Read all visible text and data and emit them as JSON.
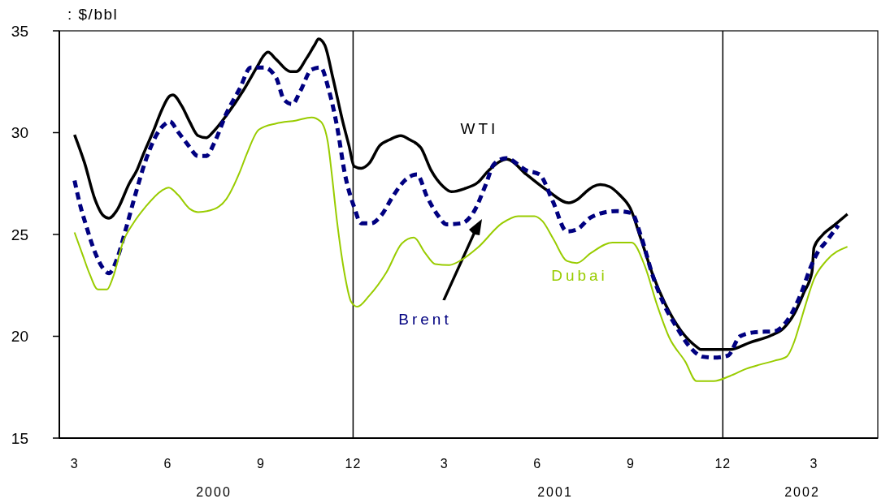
{
  "chart_data": {
    "type": "line",
    "ylabel": ": $/bbl",
    "xlim": [
      "2000-02-15",
      "2002-05-03"
    ],
    "ylim": [
      15,
      35
    ],
    "yticks": [
      15,
      20,
      25,
      30,
      35
    ],
    "xticks": [
      {
        "value": "2000-03",
        "label": "3"
      },
      {
        "value": "2000-06",
        "label": "6"
      },
      {
        "value": "2000-09",
        "label": "9"
      },
      {
        "value": "2000-12",
        "label": "12"
      },
      {
        "value": "2001-03",
        "label": "3"
      },
      {
        "value": "2001-06",
        "label": "6"
      },
      {
        "value": "2001-09",
        "label": "9"
      },
      {
        "value": "2001-12",
        "label": "12"
      },
      {
        "value": "2002-03",
        "label": "3"
      }
    ],
    "grid": false,
    "legend": false,
    "marker": "none",
    "annotations": [
      "2000",
      "2001",
      "2002"
    ],
    "ref_lines": [
      {
        "axis": "x",
        "value": "2000-12",
        "color": "#000000"
      },
      {
        "axis": "x",
        "value": "2001-12",
        "color": "#000000"
      }
    ],
    "series": [
      {
        "name": "WTI",
        "color": "#000000",
        "line_style": "solid",
        "x": [
          "2000-03-01",
          "2000-03-11",
          "2000-03-21",
          "2000-03-29",
          "2000-04-04",
          "2000-04-12",
          "2000-04-24",
          "2000-05-02",
          "2000-05-08",
          "2000-05-18",
          "2000-05-26",
          "2000-06-03",
          "2000-06-06",
          "2000-06-15",
          "2000-06-23",
          "2000-07-01",
          "2000-07-09",
          "2000-07-17",
          "2000-07-29",
          "2000-08-15",
          "2000-08-29",
          "2000-09-04",
          "2000-09-08",
          "2000-09-16",
          "2000-09-30",
          "2000-10-06",
          "2000-10-16",
          "2000-10-24",
          "2000-10-28",
          "2000-11-03",
          "2000-11-11",
          "2000-11-21",
          "2000-11-27",
          "2000-12-02",
          "2000-12-09",
          "2000-12-17",
          "2000-12-27",
          "2001-01-06",
          "2001-01-17",
          "2001-01-26",
          "2001-02-06",
          "2001-02-16",
          "2001-02-28",
          "2001-03-08",
          "2001-03-21",
          "2001-04-03",
          "2001-04-14",
          "2001-05-02",
          "2001-05-21",
          "2001-06-11",
          "2001-07-02",
          "2001-07-10",
          "2001-07-18",
          "2001-07-26",
          "2001-08-02",
          "2001-08-11",
          "2001-08-21",
          "2001-09-01",
          "2001-09-11",
          "2001-09-23",
          "2001-10-05",
          "2001-10-21",
          "2001-11-06",
          "2001-11-09",
          "2001-11-21",
          "2001-12-08",
          "2001-12-28",
          "2002-01-18",
          "2002-01-30",
          "2002-02-10",
          "2002-02-19",
          "2002-02-27",
          "2002-03-01",
          "2002-03-09",
          "2002-03-21",
          "2002-04-03"
        ],
        "values": [
          29.9,
          28.5,
          26.75,
          25.95,
          25.8,
          26.2,
          27.5,
          28.2,
          28.95,
          30.1,
          31.1,
          31.8,
          31.85,
          31.3,
          30.5,
          29.85,
          29.75,
          30.1,
          30.85,
          32.1,
          33.3,
          33.8,
          33.95,
          33.6,
          33.0,
          33.0,
          33.65,
          34.3,
          34.6,
          34.3,
          32.7,
          30.5,
          29.35,
          28.35,
          28.25,
          28.5,
          29.35,
          29.65,
          29.85,
          29.65,
          29.25,
          28.15,
          27.35,
          27.1,
          27.25,
          27.55,
          28.15,
          28.7,
          27.95,
          27.15,
          26.55,
          26.7,
          27.05,
          27.35,
          27.45,
          27.35,
          26.95,
          26.25,
          24.8,
          23.0,
          21.6,
          20.25,
          19.45,
          19.35,
          19.35,
          19.35,
          19.7,
          20.05,
          20.4,
          21.15,
          22.15,
          23.15,
          24.35,
          24.95,
          25.45,
          26.0
        ]
      },
      {
        "name": "Brent",
        "color": "#000080",
        "line_style": "dashed",
        "x": [
          "2000-03-01",
          "2000-03-06",
          "2000-03-13",
          "2000-03-21",
          "2000-03-29",
          "2000-04-04",
          "2000-04-12",
          "2000-04-20",
          "2000-04-30",
          "2000-05-10",
          "2000-05-21",
          "2000-05-30",
          "2000-06-03",
          "2000-06-11",
          "2000-06-21",
          "2000-07-01",
          "2000-07-09",
          "2000-07-17",
          "2000-07-29",
          "2000-08-11",
          "2000-08-22",
          "2000-09-04",
          "2000-09-16",
          "2000-09-24",
          "2000-10-02",
          "2000-10-10",
          "2000-10-21",
          "2000-10-30",
          "2000-11-07",
          "2000-11-15",
          "2000-11-23",
          "2000-12-02",
          "2000-12-09",
          "2000-12-19",
          "2000-12-29",
          "2001-01-09",
          "2001-01-21",
          "2001-02-02",
          "2001-02-12",
          "2001-02-24",
          "2001-03-03",
          "2001-03-18",
          "2001-03-30",
          "2001-04-11",
          "2001-04-19",
          "2001-05-01",
          "2001-05-21",
          "2001-06-03",
          "2001-06-16",
          "2001-06-30",
          "2001-07-10",
          "2001-07-24",
          "2001-08-18",
          "2001-09-02",
          "2001-09-11",
          "2001-09-23",
          "2001-10-05",
          "2001-10-17",
          "2001-10-29",
          "2001-11-11",
          "2001-11-22",
          "2001-12-06",
          "2001-12-18",
          "2002-01-02",
          "2002-01-21",
          "2002-02-03",
          "2002-02-15",
          "2002-02-27",
          "2002-03-05",
          "2002-03-13",
          "2002-03-25"
        ],
        "values": [
          27.65,
          26.55,
          25.35,
          24.15,
          23.35,
          23.1,
          23.8,
          25.15,
          26.95,
          28.6,
          29.9,
          30.45,
          30.55,
          30.05,
          29.4,
          28.85,
          28.85,
          29.5,
          30.95,
          32.15,
          33.2,
          33.2,
          32.7,
          31.6,
          31.4,
          32.05,
          33.1,
          33.2,
          32.1,
          30.35,
          27.95,
          26.35,
          25.55,
          25.55,
          25.95,
          26.85,
          27.65,
          27.95,
          26.85,
          25.85,
          25.5,
          25.55,
          26.1,
          27.45,
          28.45,
          28.75,
          28.15,
          27.95,
          26.65,
          25.15,
          25.25,
          25.85,
          26.15,
          26.05,
          24.95,
          22.95,
          21.45,
          20.4,
          19.5,
          19.0,
          18.95,
          19.05,
          20.0,
          20.2,
          20.25,
          20.8,
          21.95,
          23.55,
          24.15,
          24.65,
          25.45
        ]
      },
      {
        "name": "Dubai",
        "color": "#99cc00",
        "line_style": "solid",
        "x": [
          "2000-03-01",
          "2000-03-09",
          "2000-03-16",
          "2000-03-24",
          "2000-04-02",
          "2000-04-08",
          "2000-04-18",
          "2000-04-28",
          "2000-05-10",
          "2000-05-26",
          "2000-06-02",
          "2000-06-11",
          "2000-06-23",
          "2000-07-01",
          "2000-07-17",
          "2000-07-29",
          "2000-08-11",
          "2000-08-18",
          "2000-08-30",
          "2000-09-16",
          "2000-10-06",
          "2000-10-21",
          "2000-10-30",
          "2000-11-06",
          "2000-11-10",
          "2000-11-15",
          "2000-11-23",
          "2000-11-29",
          "2000-12-05",
          "2000-12-17",
          "2001-01-03",
          "2001-01-18",
          "2001-01-30",
          "2001-02-10",
          "2001-02-20",
          "2001-03-06",
          "2001-03-18",
          "2001-04-03",
          "2001-04-27",
          "2001-05-13",
          "2001-05-29",
          "2001-06-06",
          "2001-06-17",
          "2001-06-30",
          "2001-07-10",
          "2001-07-24",
          "2001-08-14",
          "2001-09-02",
          "2001-09-15",
          "2001-09-27",
          "2001-10-09",
          "2001-10-25",
          "2001-11-05",
          "2001-11-22",
          "2001-12-08",
          "2001-12-24",
          "2002-01-06",
          "2002-01-21",
          "2002-02-02",
          "2002-02-10",
          "2002-02-15",
          "2002-02-21",
          "2002-03-01",
          "2002-03-13",
          "2002-04-03"
        ],
        "values": [
          25.1,
          24.0,
          23.05,
          22.3,
          22.3,
          22.9,
          24.65,
          25.55,
          26.35,
          27.15,
          27.3,
          26.95,
          26.25,
          26.1,
          26.25,
          26.75,
          28.05,
          28.95,
          30.15,
          30.45,
          30.6,
          30.75,
          30.55,
          29.55,
          27.95,
          25.7,
          22.95,
          21.7,
          21.45,
          22.0,
          23.15,
          24.55,
          24.85,
          24.1,
          23.55,
          23.5,
          23.75,
          24.35,
          25.55,
          25.9,
          25.9,
          25.65,
          24.75,
          23.7,
          23.6,
          24.1,
          24.6,
          24.6,
          23.45,
          21.55,
          19.95,
          18.75,
          17.8,
          17.8,
          18.05,
          18.4,
          18.6,
          18.8,
          19.0,
          19.8,
          20.6,
          21.6,
          22.8,
          23.7,
          24.4
        ]
      }
    ]
  }
}
